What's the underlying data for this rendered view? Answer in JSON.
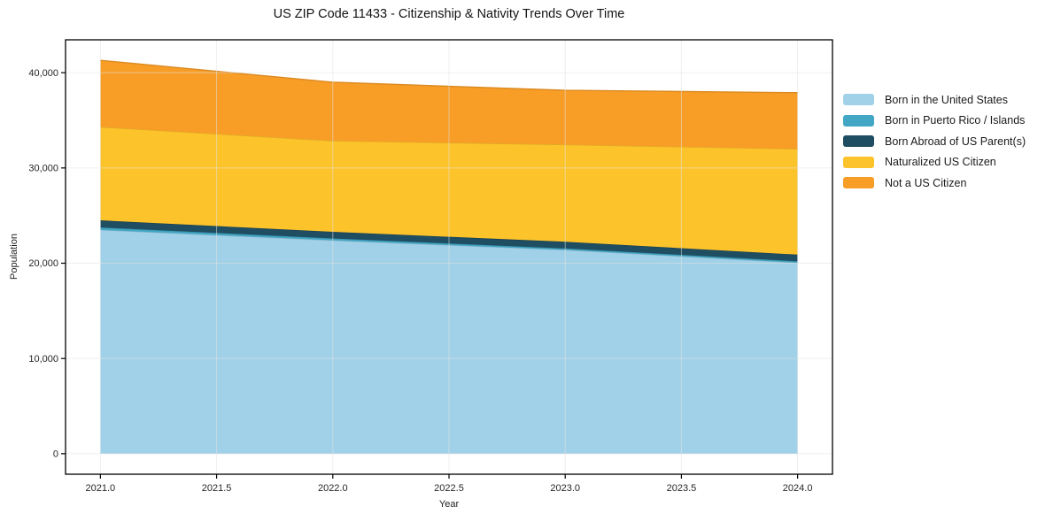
{
  "chart_data": {
    "type": "area",
    "stacked": true,
    "title": "US ZIP Code 11433 - Citizenship & Nativity Trends Over Time",
    "xlabel": "Year",
    "ylabel": "Population",
    "x": [
      2021,
      2022,
      2023,
      2024
    ],
    "series": [
      {
        "name": "Born in the United States",
        "color": "#A0D1E8",
        "values": [
          23500,
          22400,
          21400,
          20050
        ]
      },
      {
        "name": "Born in Puerto Rico / Islands",
        "color": "#41A7C5",
        "values": [
          250,
          200,
          150,
          150
        ]
      },
      {
        "name": "Born Abroad of US Parent(s)",
        "color": "#1F4D61",
        "values": [
          750,
          700,
          700,
          700
        ]
      },
      {
        "name": "Naturalized US Citizen",
        "color": "#FDC32B",
        "values": [
          9800,
          9550,
          10200,
          11100
        ]
      },
      {
        "name": "Not a US Citizen",
        "color": "#F89D26",
        "values": [
          7000,
          6150,
          5700,
          5900
        ]
      }
    ],
    "stacked_totals": [
      41300,
      39000,
      38150,
      37900
    ],
    "xlim": [
      2020.85,
      2024.15
    ],
    "ylim": [
      -2150,
      43450
    ],
    "xticks": {
      "values": [
        2021.0,
        2021.5,
        2022.0,
        2022.5,
        2023.0,
        2023.5,
        2024.0
      ],
      "labels": [
        "2021.0",
        "2021.5",
        "2022.0",
        "2022.5",
        "2023.0",
        "2023.5",
        "2024.0"
      ]
    },
    "yticks": {
      "values": [
        0,
        10000,
        20000,
        30000,
        40000
      ],
      "labels": [
        "0",
        "10,000",
        "20,000",
        "30,000",
        "40,000"
      ]
    },
    "grid": true,
    "legend_position": "right-outside",
    "colors": {
      "grid": "#e3e3e3",
      "spine": "#000000",
      "tick": "#000000",
      "tick_label": "#262626"
    }
  }
}
